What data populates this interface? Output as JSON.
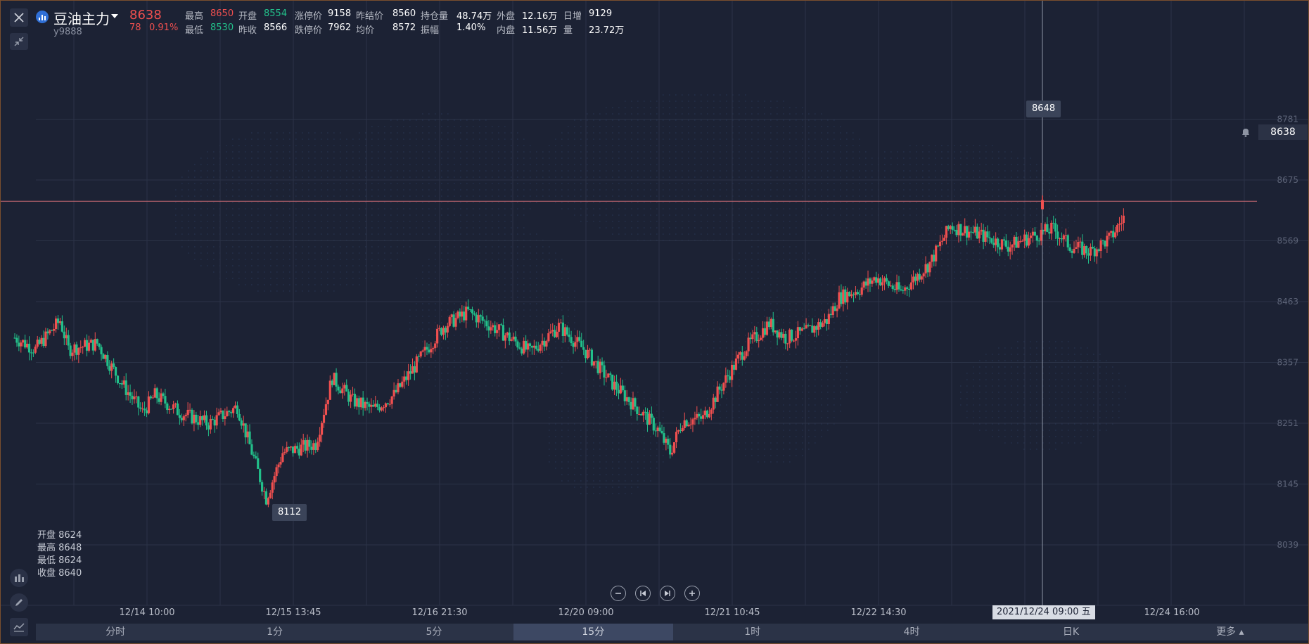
{
  "window": {
    "close_icon": "close-icon",
    "collapse_icon": "collapse-icon"
  },
  "symbol": {
    "name": "豆油主力",
    "code": "y9888",
    "price": "8638",
    "change": "78",
    "change_pct": "0.91%"
  },
  "quote": {
    "row1": [
      {
        "label": "最高",
        "value": "8650",
        "tone": "red"
      },
      {
        "label": "开盘",
        "value": "8554",
        "tone": "green"
      },
      {
        "label": "涨停价",
        "value": "9158",
        "tone": "white"
      },
      {
        "label": "昨结价",
        "value": "8560",
        "tone": "white"
      },
      {
        "label": "持仓量",
        "value": "48.74万",
        "tone": "white"
      },
      {
        "label": "外盘",
        "value": "12.16万",
        "tone": "white"
      },
      {
        "label": "日增",
        "value": "9129",
        "tone": "white"
      }
    ],
    "row2": [
      {
        "label": "最低",
        "value": "8530",
        "tone": "green"
      },
      {
        "label": "昨收",
        "value": "8566",
        "tone": "white"
      },
      {
        "label": "跌停价",
        "value": "7962",
        "tone": "white"
      },
      {
        "label": "均价",
        "value": "8572",
        "tone": "white"
      },
      {
        "label": "振幅",
        "value": "1.40%",
        "tone": "white"
      },
      {
        "label": "内盘",
        "value": "11.56万",
        "tone": "white"
      },
      {
        "label": "量",
        "value": "23.72万",
        "tone": "white"
      }
    ]
  },
  "chart_data": {
    "type": "candlestick",
    "y_ticks": [
      "8781",
      "8675",
      "8569",
      "8463",
      "8357",
      "8251",
      "8145",
      "8039"
    ],
    "x_ticks": [
      "12/14 10:00",
      "12/15 13:45",
      "12/16 21:30",
      "12/20 09:00",
      "12/21 10:45",
      "12/22 14:30",
      "12/24 16:00"
    ],
    "current_price": "8638",
    "high_marker": "8648",
    "low_marker": "8112",
    "crosshair_date": "2021/12/24 09:00 五",
    "colors": {
      "up": "#ef4f4f",
      "down": "#22c08a",
      "background": "#1c2234",
      "grid": "#2b3347"
    },
    "anchors": [
      [
        0,
        8400
      ],
      [
        10,
        8380
      ],
      [
        22,
        8430
      ],
      [
        26,
        8380
      ],
      [
        40,
        8390
      ],
      [
        52,
        8320
      ],
      [
        62,
        8270
      ],
      [
        68,
        8300
      ],
      [
        80,
        8270
      ],
      [
        94,
        8250
      ],
      [
        108,
        8280
      ],
      [
        116,
        8190
      ],
      [
        122,
        8120
      ],
      [
        130,
        8200
      ],
      [
        146,
        8215
      ],
      [
        154,
        8330
      ],
      [
        164,
        8290
      ],
      [
        174,
        8275
      ],
      [
        184,
        8300
      ],
      [
        194,
        8350
      ],
      [
        208,
        8420
      ],
      [
        220,
        8445
      ],
      [
        236,
        8410
      ],
      [
        250,
        8375
      ],
      [
        264,
        8420
      ],
      [
        276,
        8380
      ],
      [
        290,
        8320
      ],
      [
        304,
        8270
      ],
      [
        312,
        8240
      ],
      [
        318,
        8200
      ],
      [
        324,
        8255
      ],
      [
        334,
        8260
      ],
      [
        342,
        8310
      ],
      [
        354,
        8380
      ],
      [
        366,
        8425
      ],
      [
        374,
        8400
      ],
      [
        384,
        8410
      ],
      [
        394,
        8430
      ],
      [
        400,
        8470
      ],
      [
        410,
        8485
      ],
      [
        418,
        8505
      ],
      [
        430,
        8480
      ],
      [
        444,
        8530
      ],
      [
        454,
        8595
      ],
      [
        468,
        8580
      ],
      [
        482,
        8560
      ],
      [
        496,
        8580
      ],
      [
        504,
        8590
      ],
      [
        512,
        8560
      ],
      [
        522,
        8550
      ],
      [
        532,
        8575
      ],
      [
        538,
        8610
      ]
    ]
  },
  "ohlc": {
    "open": "开盘 8624",
    "high": "最高 8648",
    "low": "最低 8624",
    "close": "收盘 8640"
  },
  "tabs": [
    {
      "label": "分时",
      "active": false
    },
    {
      "label": "1分",
      "active": false
    },
    {
      "label": "5分",
      "active": false
    },
    {
      "label": "15分",
      "active": true
    },
    {
      "label": "1时",
      "active": false
    },
    {
      "label": "4时",
      "active": false
    },
    {
      "label": "日K",
      "active": false
    },
    {
      "label": "更多",
      "active": false
    }
  ],
  "tools": {
    "indicator_icon": "indicator-icon",
    "draw_icon": "pencil-icon",
    "trend_icon": "trendline-icon",
    "alarm_icon": "bell-icon"
  }
}
